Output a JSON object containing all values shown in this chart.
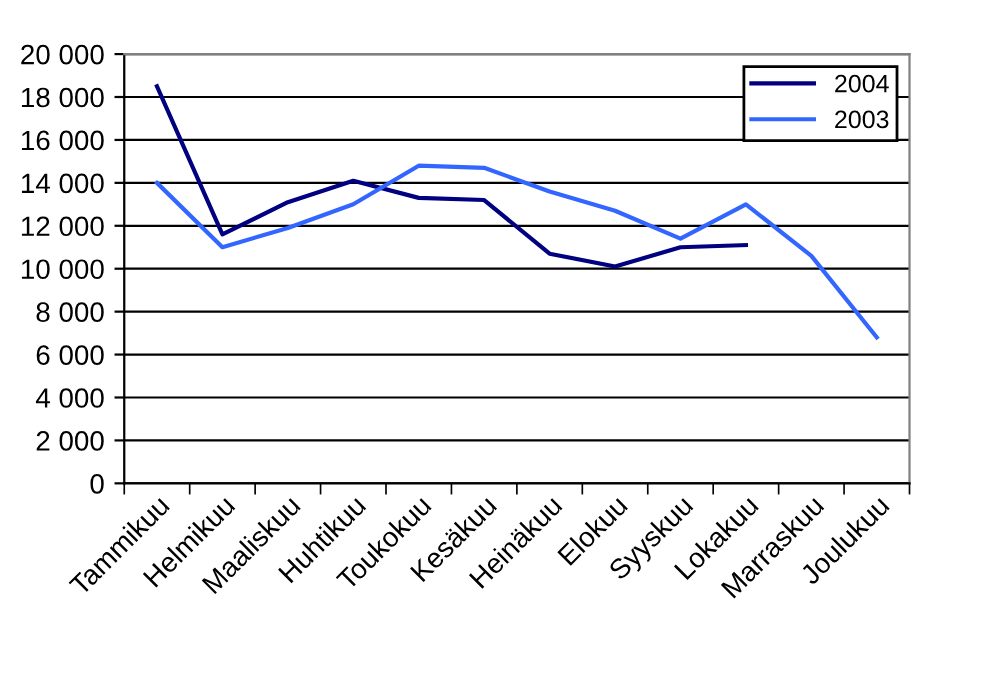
{
  "chart_data": {
    "type": "line",
    "categories": [
      "Tammikuu",
      "Helmikuu",
      "Maaliskuu",
      "Huhtikuu",
      "Toukokuu",
      "Kesäkuu",
      "Heinäkuu",
      "Elokuu",
      "Syyskuu",
      "Lokakuu",
      "Marraskuu",
      "Joulukuu"
    ],
    "series": [
      {
        "name": "2004",
        "color": "#000080",
        "values": [
          18500,
          11600,
          13100,
          14100,
          13300,
          13200,
          10700,
          10100,
          11000,
          11100,
          null,
          null
        ]
      },
      {
        "name": "2003",
        "color": "#3366ff",
        "values": [
          14000,
          11000,
          11900,
          13000,
          14800,
          14700,
          13600,
          12700,
          11400,
          13000,
          10600,
          6800
        ]
      }
    ],
    "ylim": [
      0,
      20000
    ],
    "yticks": [
      {
        "value": 0,
        "label": "0"
      },
      {
        "value": 2000,
        "label": "2 000"
      },
      {
        "value": 4000,
        "label": "4 000"
      },
      {
        "value": 6000,
        "label": "6 000"
      },
      {
        "value": 8000,
        "label": "8 000"
      },
      {
        "value": 10000,
        "label": "10 000"
      },
      {
        "value": 12000,
        "label": "12 000"
      },
      {
        "value": 14000,
        "label": "14 000"
      },
      {
        "value": 16000,
        "label": "16 000"
      },
      {
        "value": 18000,
        "label": "18 000"
      },
      {
        "value": 20000,
        "label": "20 000"
      }
    ],
    "grid": "y",
    "legend": "top right",
    "marker": "none",
    "line_style": "solid"
  }
}
